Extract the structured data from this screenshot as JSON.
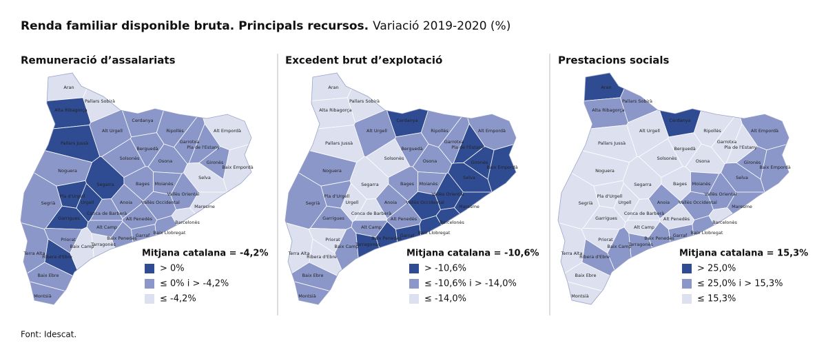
{
  "title": "Renda familiar disponible bruta. Principals recursos.",
  "subtitle": "Variació 2019-2020 (%)",
  "source": "Font: Idescat.",
  "panels": [
    {
      "title": "Remuneració d’assalariats",
      "average_label": "Mitjana catalana = -4,2%",
      "legend": [
        {
          "label": "> 0%",
          "color": "#2f4c92"
        },
        {
          "label": "≤ 0% i > -4,2%",
          "color": "#8b97c9"
        },
        {
          "label": "≤ -4,2%",
          "color": "#dde0ef"
        }
      ],
      "regions": [
        {
          "name": "Aran",
          "color": "#dde0ef"
        },
        {
          "name": "Pallars Sobirà",
          "color": "#dde0ef"
        },
        {
          "name": "Alta Ribagorça",
          "color": "#2f4c92"
        },
        {
          "name": "Cerdanya",
          "color": "#8b97c9"
        },
        {
          "name": "Alt Urgell",
          "color": "#8b97c9"
        },
        {
          "name": "Ripollès",
          "color": "#8b97c9"
        },
        {
          "name": "Alt Empordà",
          "color": "#dde0ef"
        },
        {
          "name": "Garrotxa",
          "color": "#8b97c9"
        },
        {
          "name": "Pla de l'Estany",
          "color": "#8b97c9"
        },
        {
          "name": "Pallars Jussà",
          "color": "#2f4c92"
        },
        {
          "name": "Berguedà",
          "color": "#8b97c9"
        },
        {
          "name": "Solsonès",
          "color": "#8b97c9"
        },
        {
          "name": "Osona",
          "color": "#8b97c9"
        },
        {
          "name": "Gironès",
          "color": "#8b97c9"
        },
        {
          "name": "Baix Empordà",
          "color": "#dde0ef"
        },
        {
          "name": "Noguera",
          "color": "#8b97c9"
        },
        {
          "name": "Selva",
          "color": "#dde0ef"
        },
        {
          "name": "Segarra",
          "color": "#2f4c92"
        },
        {
          "name": "Pla d'Urgell",
          "color": "#2f4c92"
        },
        {
          "name": "Bages",
          "color": "#8b97c9"
        },
        {
          "name": "Moianès",
          "color": "#8b97c9"
        },
        {
          "name": "Vallès Oriental",
          "color": "#8b97c9"
        },
        {
          "name": "Segrià",
          "color": "#8b97c9"
        },
        {
          "name": "Urgell",
          "color": "#2f4c92"
        },
        {
          "name": "Anoia",
          "color": "#8b97c9"
        },
        {
          "name": "Vallès Occidental",
          "color": "#8b97c9"
        },
        {
          "name": "Maresme",
          "color": "#dde0ef"
        },
        {
          "name": "Conca de Barberà",
          "color": "#8b97c9"
        },
        {
          "name": "Garrigues",
          "color": "#2f4c92"
        },
        {
          "name": "Alt Penedès",
          "color": "#8b97c9"
        },
        {
          "name": "Barcelonès",
          "color": "#dde0ef"
        },
        {
          "name": "Alt Camp",
          "color": "#8b97c9"
        },
        {
          "name": "Baix Penedès",
          "color": "#8b97c9"
        },
        {
          "name": "Garraf",
          "color": "#8b97c9"
        },
        {
          "name": "Baix Llobregat",
          "color": "#8b97c9"
        },
        {
          "name": "Priorat",
          "color": "#8b97c9"
        },
        {
          "name": "Baix Camp",
          "color": "#dde0ef"
        },
        {
          "name": "Tarragonès",
          "color": "#dde0ef"
        },
        {
          "name": "Terra Alta",
          "color": "#8b97c9"
        },
        {
          "name": "Ribera d'Ebre",
          "color": "#2f4c92"
        },
        {
          "name": "Baix Ebre",
          "color": "#8b97c9"
        },
        {
          "name": "Montsià",
          "color": "#8b97c9"
        }
      ]
    },
    {
      "title": "Excedent brut d’explotació",
      "average_label": "Mitjana catalana = -10,6%",
      "legend": [
        {
          "label": "> -10,6%",
          "color": "#2f4c92"
        },
        {
          "label": "≤ -10,6% i > -14,0%",
          "color": "#8b97c9"
        },
        {
          "label": "≤ -14,0%",
          "color": "#dde0ef"
        }
      ],
      "regions": [
        {
          "name": "Aran",
          "color": "#dde0ef"
        },
        {
          "name": "Pallars Sobirà",
          "color": "#dde0ef"
        },
        {
          "name": "Alta Ribagorça",
          "color": "#dde0ef"
        },
        {
          "name": "Cerdanya",
          "color": "#2f4c92"
        },
        {
          "name": "Alt Urgell",
          "color": "#8b97c9"
        },
        {
          "name": "Ripollès",
          "color": "#8b97c9"
        },
        {
          "name": "Alt Empordà",
          "color": "#8b97c9"
        },
        {
          "name": "Garrotxa",
          "color": "#8b97c9"
        },
        {
          "name": "Pla de l'Estany",
          "color": "#2f4c92"
        },
        {
          "name": "Pallars Jussà",
          "color": "#dde0ef"
        },
        {
          "name": "Berguedà",
          "color": "#8b97c9"
        },
        {
          "name": "Solsonès",
          "color": "#dde0ef"
        },
        {
          "name": "Osona",
          "color": "#8b97c9"
        },
        {
          "name": "Gironès",
          "color": "#2f4c92"
        },
        {
          "name": "Baix Empordà",
          "color": "#2f4c92"
        },
        {
          "name": "Noguera",
          "color": "#8b97c9"
        },
        {
          "name": "Selva",
          "color": "#2f4c92"
        },
        {
          "name": "Segarra",
          "color": "#dde0ef"
        },
        {
          "name": "Pla d'Urgell",
          "color": "#8b97c9"
        },
        {
          "name": "Bages",
          "color": "#8b97c9"
        },
        {
          "name": "Moianès",
          "color": "#8b97c9"
        },
        {
          "name": "Vallès Oriental",
          "color": "#2f4c92"
        },
        {
          "name": "Segrià",
          "color": "#8b97c9"
        },
        {
          "name": "Urgell",
          "color": "#dde0ef"
        },
        {
          "name": "Anoia",
          "color": "#8b97c9"
        },
        {
          "name": "Vallès Occidental",
          "color": "#2f4c92"
        },
        {
          "name": "Maresme",
          "color": "#2f4c92"
        },
        {
          "name": "Conca de Barberà",
          "color": "#dde0ef"
        },
        {
          "name": "Garrigues",
          "color": "#8b97c9"
        },
        {
          "name": "Alt Penedès",
          "color": "#8b97c9"
        },
        {
          "name": "Barcelonès",
          "color": "#2f4c92"
        },
        {
          "name": "Alt Camp",
          "color": "#8b97c9"
        },
        {
          "name": "Baix Penedès",
          "color": "#2f4c92"
        },
        {
          "name": "Garraf",
          "color": "#2f4c92"
        },
        {
          "name": "Baix Llobregat",
          "color": "#2f4c92"
        },
        {
          "name": "Priorat",
          "color": "#dde0ef"
        },
        {
          "name": "Baix Camp",
          "color": "#8b97c9"
        },
        {
          "name": "Tarragonès",
          "color": "#2f4c92"
        },
        {
          "name": "Terra Alta",
          "color": "#dde0ef"
        },
        {
          "name": "Ribera d'Ebre",
          "color": "#dde0ef"
        },
        {
          "name": "Baix Ebre",
          "color": "#8b97c9"
        },
        {
          "name": "Montsià",
          "color": "#8b97c9"
        }
      ]
    },
    {
      "title": "Prestacions socials",
      "average_label": "Mitjana catalana = 15,3%",
      "legend": [
        {
          "label": "> 25,0%",
          "color": "#2f4c92"
        },
        {
          "label": "≤ 25,0% i > 15,3%",
          "color": "#8b97c9"
        },
        {
          "label": "≤ 15,3%",
          "color": "#dde0ef"
        }
      ],
      "regions": [
        {
          "name": "Aran",
          "color": "#2f4c92"
        },
        {
          "name": "Pallars Sobirà",
          "color": "#8b97c9"
        },
        {
          "name": "Alta Ribagorça",
          "color": "#8b97c9"
        },
        {
          "name": "Cerdanya",
          "color": "#2f4c92"
        },
        {
          "name": "Alt Urgell",
          "color": "#dde0ef"
        },
        {
          "name": "Ripollès",
          "color": "#dde0ef"
        },
        {
          "name": "Alt Empordà",
          "color": "#8b97c9"
        },
        {
          "name": "Garrotxa",
          "color": "#dde0ef"
        },
        {
          "name": "Pla de l'Estany",
          "color": "#dde0ef"
        },
        {
          "name": "Pallars Jussà",
          "color": "#dde0ef"
        },
        {
          "name": "Berguedà",
          "color": "#dde0ef"
        },
        {
          "name": "Solsonès",
          "color": "#dde0ef"
        },
        {
          "name": "Osona",
          "color": "#dde0ef"
        },
        {
          "name": "Gironès",
          "color": "#8b97c9"
        },
        {
          "name": "Baix Empordà",
          "color": "#8b97c9"
        },
        {
          "name": "Noguera",
          "color": "#dde0ef"
        },
        {
          "name": "Selva",
          "color": "#8b97c9"
        },
        {
          "name": "Segarra",
          "color": "#dde0ef"
        },
        {
          "name": "Pla d'Urgell",
          "color": "#dde0ef"
        },
        {
          "name": "Bages",
          "color": "#dde0ef"
        },
        {
          "name": "Moianès",
          "color": "#8b97c9"
        },
        {
          "name": "Vallès Oriental",
          "color": "#8b97c9"
        },
        {
          "name": "Segrià",
          "color": "#dde0ef"
        },
        {
          "name": "Urgell",
          "color": "#dde0ef"
        },
        {
          "name": "Anoia",
          "color": "#8b97c9"
        },
        {
          "name": "Vallès Occidental",
          "color": "#8b97c9"
        },
        {
          "name": "Maresme",
          "color": "#8b97c9"
        },
        {
          "name": "Conca de Barberà",
          "color": "#dde0ef"
        },
        {
          "name": "Garrigues",
          "color": "#dde0ef"
        },
        {
          "name": "Alt Penedès",
          "color": "#dde0ef"
        },
        {
          "name": "Barcelonès",
          "color": "#dde0ef"
        },
        {
          "name": "Alt Camp",
          "color": "#dde0ef"
        },
        {
          "name": "Baix Penedès",
          "color": "#8b97c9"
        },
        {
          "name": "Garraf",
          "color": "#8b97c9"
        },
        {
          "name": "Baix Llobregat",
          "color": "#8b97c9"
        },
        {
          "name": "Priorat",
          "color": "#dde0ef"
        },
        {
          "name": "Baix Camp",
          "color": "#8b97c9"
        },
        {
          "name": "Tarragonès",
          "color": "#8b97c9"
        },
        {
          "name": "Terra Alta",
          "color": "#dde0ef"
        },
        {
          "name": "Ribera d'Ebre",
          "color": "#8b97c9"
        },
        {
          "name": "Baix Ebre",
          "color": "#dde0ef"
        },
        {
          "name": "Montsià",
          "color": "#dde0ef"
        }
      ]
    }
  ]
}
